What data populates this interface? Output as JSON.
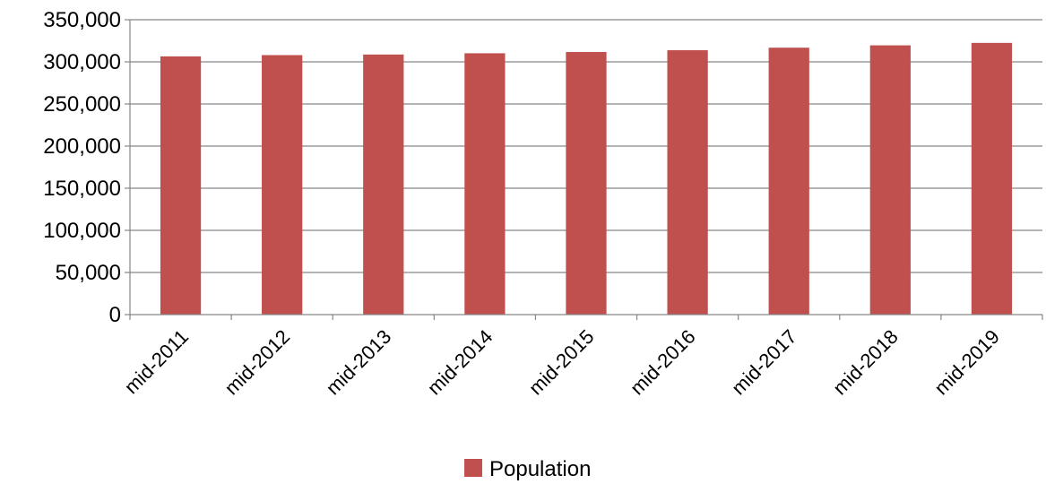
{
  "chart_data": {
    "type": "bar",
    "categories": [
      "mid-2011",
      "mid-2012",
      "mid-2013",
      "mid-2014",
      "mid-2015",
      "mid-2016",
      "mid-2017",
      "mid-2018",
      "mid-2019"
    ],
    "series": [
      {
        "name": "Population",
        "color": "#c0504d",
        "values": [
          306500,
          308000,
          308700,
          310200,
          311700,
          313800,
          316800,
          319600,
          322500
        ]
      }
    ],
    "ylim": [
      0,
      350000
    ],
    "yticks": [
      0,
      50000,
      100000,
      150000,
      200000,
      250000,
      300000,
      350000
    ],
    "ytick_labels": [
      "0",
      "50,000",
      "100,000",
      "150,000",
      "200,000",
      "250,000",
      "300,000",
      "350,000"
    ],
    "grid": true,
    "legend_position": "bottom"
  }
}
